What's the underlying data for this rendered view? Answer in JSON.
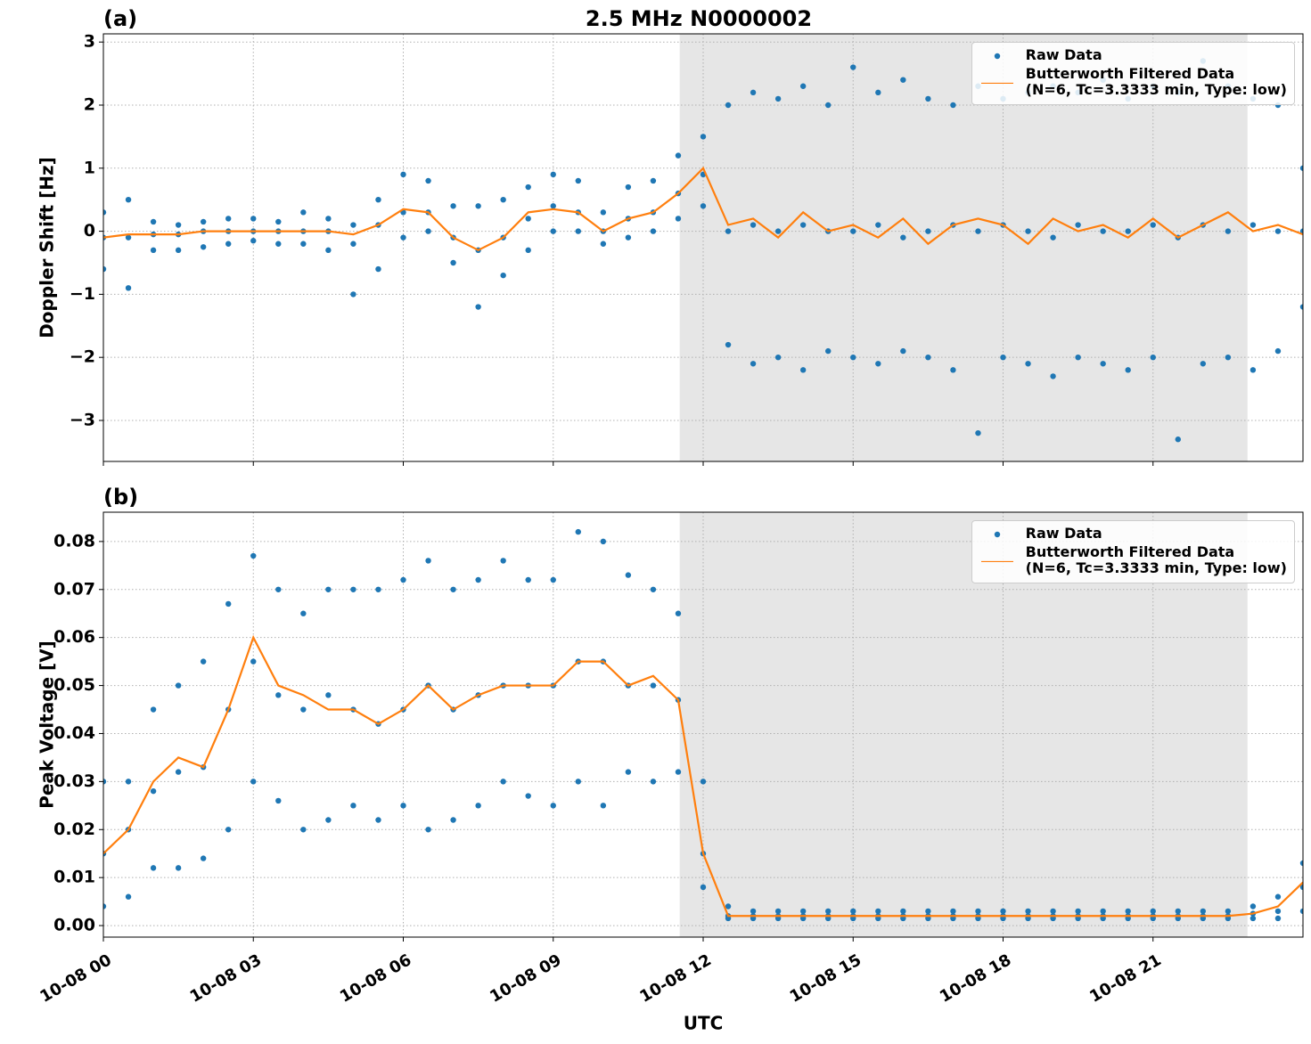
{
  "chart_data": [
    {
      "type": "scatter-line",
      "label": "(a)",
      "title": "2.5 MHz N0000002",
      "ylabel": "Doppler Shift [Hz]",
      "xlim": [
        0,
        24
      ],
      "ylim": [
        -3.65,
        3.13
      ],
      "grid": true,
      "legend": "upper right",
      "shade": [
        11.53,
        22.89
      ],
      "shade_color": "#e6e6e6",
      "show_xtick_labels": false,
      "xticks": [
        0,
        3,
        6,
        9,
        12,
        15,
        18,
        21
      ],
      "yticks": [
        {
          "value": -3,
          "label": "−3"
        },
        {
          "value": -2,
          "label": "−2"
        },
        {
          "value": -1,
          "label": "−1"
        },
        0,
        1,
        2,
        3
      ],
      "series": [
        {
          "name": "Raw Data",
          "color": "#1f77b4",
          "kind": "points",
          "x": [
            0,
            0,
            0,
            0.5,
            0.5,
            0.5,
            1,
            1,
            1,
            1.5,
            1.5,
            1.5,
            2,
            2,
            2,
            2.5,
            2.5,
            2.5,
            3,
            3,
            3,
            3.5,
            3.5,
            3.5,
            4,
            4,
            4,
            4.5,
            4.5,
            4.5,
            5,
            5,
            5,
            5.5,
            5.5,
            5.5,
            6,
            6,
            6,
            6.5,
            6.5,
            6.5,
            7,
            7,
            7,
            7.5,
            7.5,
            7.5,
            8,
            8,
            8,
            8.5,
            8.5,
            8.5,
            9,
            9,
            9,
            9.5,
            9.5,
            9.5,
            10,
            10,
            10,
            10.5,
            10.5,
            10.5,
            11,
            11,
            11,
            11.5,
            11.5,
            11.5,
            12,
            12,
            12,
            12.5,
            12.5,
            12.5,
            13,
            13,
            13,
            13.5,
            13.5,
            13.5,
            14,
            14,
            14,
            14.5,
            14.5,
            14.5,
            15,
            15,
            15,
            15.5,
            15.5,
            15.5,
            16,
            16,
            16,
            16.5,
            16.5,
            16.5,
            17,
            17,
            17,
            17.5,
            17.5,
            17.5,
            18,
            18,
            18,
            18.5,
            18.5,
            18.5,
            19,
            19,
            19,
            19.5,
            19.5,
            19.5,
            20,
            20,
            20,
            20.5,
            20.5,
            20.5,
            21,
            21,
            21,
            21.5,
            21.5,
            21.5,
            22,
            22,
            22,
            22.5,
            22.5,
            22.5,
            23,
            23,
            23,
            23.5,
            23.5,
            23.5,
            24,
            24,
            24
          ],
          "values": [
            0.3,
            -0.1,
            -0.6,
            0.5,
            -0.1,
            -0.9,
            0.15,
            -0.05,
            -0.3,
            0.1,
            -0.05,
            -0.3,
            0.15,
            0,
            -0.25,
            0.2,
            0,
            -0.2,
            0.2,
            0,
            -0.15,
            0.15,
            0,
            -0.2,
            0.3,
            0,
            -0.2,
            0.2,
            0,
            -0.3,
            0.1,
            -0.2,
            -1.0,
            0.5,
            0.1,
            -0.6,
            0.9,
            0.3,
            -0.1,
            0.8,
            0.3,
            0,
            0.4,
            -0.1,
            -0.5,
            0.4,
            -0.3,
            -1.2,
            0.5,
            -0.1,
            -0.7,
            0.7,
            0.2,
            -0.3,
            0.9,
            0.4,
            0,
            0.8,
            0.3,
            0,
            0.3,
            0,
            -0.2,
            0.7,
            0.2,
            -0.1,
            0.8,
            0.3,
            0,
            1.2,
            0.6,
            0.2,
            1.5,
            0.9,
            0.4,
            2.0,
            0,
            -1.8,
            2.2,
            0.1,
            -2.1,
            2.1,
            0,
            -2.0,
            2.3,
            0.1,
            -2.2,
            2.0,
            0,
            -1.9,
            2.6,
            0,
            -2.0,
            2.2,
            0.1,
            -2.1,
            2.4,
            -0.1,
            -1.9,
            2.1,
            0,
            -2.0,
            2.0,
            0.1,
            -2.2,
            2.3,
            0,
            -3.2,
            2.1,
            0.1,
            -2.0,
            2.2,
            0,
            -2.1,
            2.3,
            -0.1,
            -2.3,
            2.2,
            0.1,
            -2.0,
            2.4,
            0,
            -2.1,
            2.1,
            0,
            -2.2,
            2.3,
            0.1,
            -2.0,
            2.2,
            -0.1,
            -3.3,
            2.7,
            0.1,
            -2.1,
            2.3,
            0,
            -2.0,
            2.1,
            0.1,
            -2.2,
            2.0,
            0,
            -1.9,
            1.0,
            0,
            -1.2
          ]
        },
        {
          "name": "Butterworth Filtered Data\n(N=6, Tc=3.3333 min, Type: low)",
          "color": "#ff7f0e",
          "kind": "line",
          "x": [
            0,
            0.5,
            1,
            1.5,
            2,
            2.5,
            3,
            3.5,
            4,
            4.5,
            5,
            5.5,
            6,
            6.5,
            7,
            7.5,
            8,
            8.5,
            9,
            9.5,
            10,
            10.5,
            11,
            11.5,
            12,
            12.5,
            13,
            13.5,
            14,
            14.5,
            15,
            15.5,
            16,
            16.5,
            17,
            17.5,
            18,
            18.5,
            19,
            19.5,
            20,
            20.5,
            21,
            21.5,
            22,
            22.5,
            23,
            23.5,
            24
          ],
          "values": [
            -0.1,
            -0.05,
            -0.05,
            -0.05,
            0,
            0,
            0,
            0,
            0,
            0,
            -0.05,
            0.1,
            0.35,
            0.3,
            -0.1,
            -0.3,
            -0.1,
            0.3,
            0.35,
            0.3,
            0,
            0.2,
            0.3,
            0.6,
            1.0,
            0.1,
            0.2,
            -0.1,
            0.3,
            0,
            0.1,
            -0.1,
            0.2,
            -0.2,
            0.1,
            0.2,
            0.1,
            -0.2,
            0.2,
            0,
            0.1,
            -0.1,
            0.2,
            -0.1,
            0.1,
            0.3,
            0,
            0.1,
            -0.05
          ]
        }
      ]
    },
    {
      "type": "scatter-line",
      "label": "(b)",
      "ylabel": "Peak Voltage [V]",
      "xlabel": "UTC",
      "xlim": [
        0,
        24
      ],
      "ylim": [
        -0.0024,
        0.0861
      ],
      "grid": true,
      "legend": "upper right",
      "shade": [
        11.53,
        22.89
      ],
      "shade_color": "#e6e6e6",
      "show_xtick_labels": true,
      "xticks": [
        {
          "value": 0,
          "label": "10-08 00"
        },
        {
          "value": 3,
          "label": "10-08 03"
        },
        {
          "value": 6,
          "label": "10-08 06"
        },
        {
          "value": 9,
          "label": "10-08 09"
        },
        {
          "value": 12,
          "label": "10-08 12"
        },
        {
          "value": 15,
          "label": "10-08 15"
        },
        {
          "value": 18,
          "label": "10-08 18"
        },
        {
          "value": 21,
          "label": "10-08 21"
        }
      ],
      "yticks": [
        {
          "value": 0,
          "label": "0.00"
        },
        0.01,
        0.02,
        0.03,
        0.04,
        0.05,
        0.06,
        0.07,
        0.08
      ],
      "series": [
        {
          "name": "Raw Data",
          "color": "#1f77b4",
          "kind": "points",
          "x": [
            0,
            0,
            0,
            0.5,
            0.5,
            0.5,
            1,
            1,
            1,
            1.5,
            1.5,
            1.5,
            2,
            2,
            2,
            2.5,
            2.5,
            2.5,
            3,
            3,
            3,
            3.5,
            3.5,
            3.5,
            4,
            4,
            4,
            4.5,
            4.5,
            4.5,
            5,
            5,
            5,
            5.5,
            5.5,
            5.5,
            6,
            6,
            6,
            6.5,
            6.5,
            6.5,
            7,
            7,
            7,
            7.5,
            7.5,
            7.5,
            8,
            8,
            8,
            8.5,
            8.5,
            8.5,
            9,
            9,
            9,
            9.5,
            9.5,
            9.5,
            10,
            10,
            10,
            10.5,
            10.5,
            10.5,
            11,
            11,
            11,
            11.5,
            11.5,
            11.5,
            12,
            12,
            12,
            12.5,
            12.5,
            12.5,
            13,
            13,
            13,
            13.5,
            13.5,
            13.5,
            14,
            14,
            14,
            14.5,
            14.5,
            14.5,
            15,
            15,
            15,
            15.5,
            15.5,
            15.5,
            16,
            16,
            16,
            16.5,
            16.5,
            16.5,
            17,
            17,
            17,
            17.5,
            17.5,
            17.5,
            18,
            18,
            18,
            18.5,
            18.5,
            18.5,
            19,
            19,
            19,
            19.5,
            19.5,
            19.5,
            20,
            20,
            20,
            20.5,
            20.5,
            20.5,
            21,
            21,
            21,
            21.5,
            21.5,
            21.5,
            22,
            22,
            22,
            22.5,
            22.5,
            22.5,
            23,
            23,
            23,
            23.5,
            23.5,
            23.5,
            24,
            24,
            24
          ],
          "values": [
            0.03,
            0.015,
            0.004,
            0.03,
            0.02,
            0.006,
            0.045,
            0.028,
            0.012,
            0.05,
            0.032,
            0.012,
            0.055,
            0.033,
            0.014,
            0.067,
            0.045,
            0.02,
            0.077,
            0.055,
            0.03,
            0.07,
            0.048,
            0.026,
            0.065,
            0.045,
            0.02,
            0.07,
            0.048,
            0.022,
            0.07,
            0.045,
            0.025,
            0.07,
            0.042,
            0.022,
            0.072,
            0.045,
            0.025,
            0.076,
            0.05,
            0.02,
            0.07,
            0.045,
            0.022,
            0.072,
            0.048,
            0.025,
            0.076,
            0.05,
            0.03,
            0.072,
            0.05,
            0.027,
            0.072,
            0.05,
            0.025,
            0.082,
            0.055,
            0.03,
            0.08,
            0.055,
            0.025,
            0.073,
            0.05,
            0.032,
            0.07,
            0.05,
            0.03,
            0.065,
            0.047,
            0.032,
            0.03,
            0.015,
            0.008,
            0.004,
            0.002,
            0.0015,
            0.003,
            0.002,
            0.0015,
            0.003,
            0.002,
            0.0015,
            0.003,
            0.002,
            0.0015,
            0.003,
            0.002,
            0.0015,
            0.003,
            0.002,
            0.0015,
            0.003,
            0.002,
            0.0015,
            0.003,
            0.002,
            0.0015,
            0.003,
            0.002,
            0.0015,
            0.003,
            0.002,
            0.0015,
            0.003,
            0.002,
            0.0015,
            0.003,
            0.002,
            0.0015,
            0.003,
            0.002,
            0.0015,
            0.003,
            0.002,
            0.0015,
            0.003,
            0.002,
            0.0015,
            0.003,
            0.002,
            0.0015,
            0.003,
            0.002,
            0.0015,
            0.003,
            0.002,
            0.0015,
            0.003,
            0.002,
            0.0015,
            0.003,
            0.002,
            0.0015,
            0.003,
            0.002,
            0.0015,
            0.004,
            0.0025,
            0.0015,
            0.006,
            0.003,
            0.0015,
            0.013,
            0.008,
            0.003
          ]
        },
        {
          "name": "Butterworth Filtered Data\n(N=6, Tc=3.3333 min, Type: low)",
          "color": "#ff7f0e",
          "kind": "line",
          "x": [
            0,
            0.5,
            1,
            1.5,
            2,
            2.5,
            3,
            3.5,
            4,
            4.5,
            5,
            5.5,
            6,
            6.5,
            7,
            7.5,
            8,
            8.5,
            9,
            9.5,
            10,
            10.5,
            11,
            11.5,
            12,
            12.5,
            13,
            13.5,
            14,
            14.5,
            15,
            15.5,
            16,
            16.5,
            17,
            17.5,
            18,
            18.5,
            19,
            19.5,
            20,
            20.5,
            21,
            21.5,
            22,
            22.5,
            23,
            23.5,
            24
          ],
          "values": [
            0.015,
            0.02,
            0.03,
            0.035,
            0.033,
            0.045,
            0.06,
            0.05,
            0.048,
            0.045,
            0.045,
            0.042,
            0.045,
            0.05,
            0.045,
            0.048,
            0.05,
            0.05,
            0.05,
            0.055,
            0.055,
            0.05,
            0.052,
            0.047,
            0.015,
            0.002,
            0.002,
            0.002,
            0.002,
            0.002,
            0.002,
            0.002,
            0.002,
            0.002,
            0.002,
            0.002,
            0.002,
            0.002,
            0.002,
            0.002,
            0.002,
            0.002,
            0.002,
            0.002,
            0.002,
            0.002,
            0.0025,
            0.004,
            0.009
          ]
        }
      ]
    }
  ]
}
